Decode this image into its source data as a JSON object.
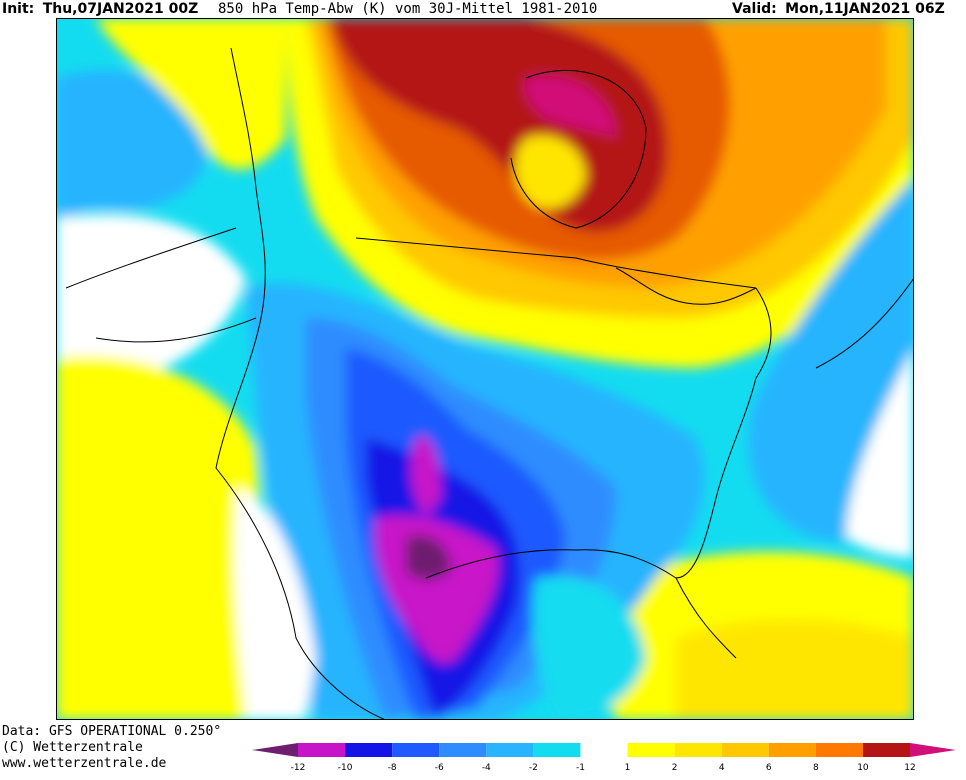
{
  "header": {
    "init_label": "Init:",
    "init_value": "Thu,07JAN2021 00Z",
    "title": "850 hPa Temp-Abw (K) vom 30J-Mittel 1981-2010",
    "valid_label": "Valid:",
    "valid_value": "Mon,11JAN2021 06Z"
  },
  "footer": {
    "data_line": "Data: GFS OPERATIONAL 0.250°",
    "copyright_line": "(C) Wetterzentrale",
    "url_line": "www.wetterzentrale.de"
  },
  "legend": {
    "tick_labels": [
      "-12",
      "-10",
      "-8",
      "-6",
      "-4",
      "-2",
      "-1",
      "1",
      "2",
      "4",
      "6",
      "8",
      "10",
      "12"
    ],
    "colors": [
      "#d20fa0",
      "#3a0a8a",
      "#6e1e6e",
      "#c814c8",
      "#1414e6",
      "#1e5aff",
      "#2e8cff",
      "#28b4ff",
      "#14dcf0",
      "#ffffff",
      "#ffff00",
      "#ffe600",
      "#ffc800",
      "#ffa000",
      "#ff7800",
      "#e65a00",
      "#b41414",
      "#d20f78"
    ]
  },
  "colors": {
    "background": "#ffffff",
    "coast_lines": "#000000"
  }
}
